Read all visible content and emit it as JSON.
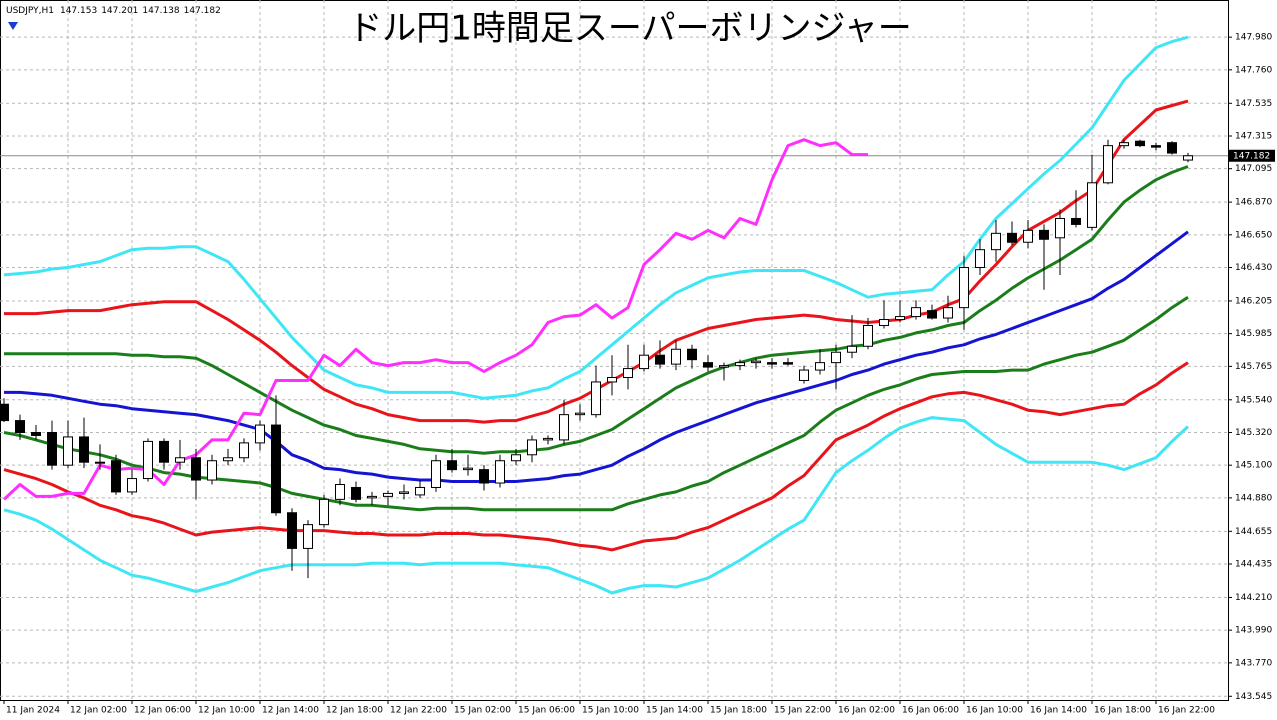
{
  "chart_data": {
    "type": "candlestick",
    "title": "ドル円1時間足スーパーボリンジャー",
    "symbol": "USDJPY,H1",
    "ylim": [
      143.52,
      148.23
    ],
    "yticks": [
      {
        "value": 147.98,
        "label": "147.980"
      },
      {
        "value": 147.76,
        "label": "147.760"
      },
      147.535,
      147.315,
      147.095,
      {
        "value": 146.87,
        "label": "146.870"
      },
      {
        "value": 146.65,
        "label": "146.650"
      },
      {
        "value": 146.43,
        "label": "146.430"
      },
      146.205,
      145.985,
      145.765,
      {
        "value": 145.54,
        "label": "145.540"
      },
      {
        "value": 145.32,
        "label": "145.320"
      },
      {
        "value": 145.1,
        "label": "145.100"
      },
      {
        "value": 144.88,
        "label": "144.880"
      },
      144.655,
      144.435,
      {
        "value": 144.21,
        "label": "144.210"
      },
      {
        "value": 143.99,
        "label": "143.990"
      },
      {
        "value": 143.77,
        "label": "143.770"
      },
      143.545
    ],
    "grid": true,
    "price_line": true,
    "categories": [
      "11 Jan 2024",
      null,
      null,
      null,
      "12 Jan 02:00",
      null,
      null,
      null,
      "12 Jan 06:00",
      null,
      null,
      null,
      "12 Jan 10:00",
      null,
      null,
      null,
      "12 Jan 14:00",
      null,
      null,
      null,
      "12 Jan 18:00",
      null,
      null,
      null,
      "12 Jan 22:00",
      null,
      null,
      null,
      "15 Jan 02:00",
      null,
      null,
      null,
      "15 Jan 06:00",
      null,
      null,
      null,
      "15 Jan 10:00",
      null,
      null,
      null,
      "15 Jan 14:00",
      null,
      null,
      null,
      "15 Jan 18:00",
      null,
      null,
      null,
      "15 Jan 22:00",
      null,
      null,
      null,
      "16 Jan 02:00",
      null,
      null,
      null,
      "16 Jan 06:00",
      null,
      null,
      null,
      "16 Jan 10:00",
      null,
      null,
      null,
      "16 Jan 14:00",
      null,
      null,
      null,
      "16 Jan 18:00",
      null,
      null,
      null,
      "16 Jan 22:00",
      null,
      null
    ],
    "open": [
      145.51,
      145.4,
      145.32,
      145.32,
      145.1,
      145.29,
      145.12,
      145.13,
      144.92,
      145.01,
      145.26,
      145.12,
      145.15,
      145.0,
      145.13,
      145.15,
      145.25,
      145.37,
      144.78,
      144.54,
      144.7,
      144.87,
      144.95,
      144.88,
      144.89,
      144.91,
      144.9,
      144.95,
      145.13,
      145.07,
      145.07,
      144.98,
      145.13,
      145.17,
      145.27,
      145.27,
      145.44,
      145.44,
      145.66,
      145.69,
      145.75,
      145.84,
      145.78,
      145.88,
      145.79,
      145.76,
      145.77,
      145.79,
      145.79,
      145.79,
      145.67,
      145.74,
      145.79,
      145.86,
      145.9,
      146.04,
      146.08,
      146.1,
      146.14,
      146.09,
      146.16,
      146.43,
      146.55,
      146.66,
      146.6,
      146.68,
      146.63,
      146.76,
      146.7,
      147.0,
      147.25,
      147.28,
      147.25,
      147.27,
      147.153
    ],
    "high": [
      145.55,
      145.44,
      145.37,
      145.4,
      145.4,
      145.42,
      145.24,
      145.17,
      145.07,
      145.28,
      145.28,
      145.27,
      145.21,
      145.17,
      145.21,
      145.28,
      145.4,
      145.57,
      144.81,
      144.73,
      144.9,
      145.01,
      144.99,
      144.92,
      144.93,
      144.97,
      145.0,
      145.17,
      145.21,
      145.17,
      145.1,
      145.17,
      145.21,
      145.3,
      145.3,
      145.54,
      145.51,
      145.77,
      145.84,
      145.91,
      145.91,
      145.94,
      145.94,
      145.91,
      145.84,
      145.79,
      145.81,
      145.82,
      145.82,
      145.82,
      145.77,
      145.88,
      145.91,
      146.11,
      146.09,
      146.21,
      146.21,
      146.21,
      146.18,
      146.24,
      146.51,
      146.62,
      146.75,
      146.74,
      146.75,
      146.72,
      146.82,
      146.95,
      147.19,
      147.29,
      147.29,
      147.29,
      147.27,
      147.28,
      147.201
    ],
    "low": [
      145.39,
      145.27,
      145.27,
      145.07,
      145.08,
      145.08,
      145.07,
      144.9,
      144.9,
      144.99,
      145.07,
      145.07,
      144.87,
      144.97,
      145.1,
      145.12,
      145.2,
      144.76,
      144.39,
      144.34,
      144.68,
      144.83,
      144.85,
      144.83,
      144.83,
      144.87,
      144.88,
      144.92,
      145.05,
      145.03,
      144.93,
      144.95,
      145.1,
      145.12,
      145.24,
      145.24,
      145.4,
      145.42,
      145.57,
      145.61,
      145.73,
      145.75,
      145.74,
      145.75,
      145.73,
      145.67,
      145.74,
      145.75,
      145.75,
      145.77,
      145.65,
      145.71,
      145.61,
      145.82,
      145.88,
      146.02,
      146.06,
      146.08,
      146.08,
      146.06,
      146.01,
      146.38,
      146.47,
      146.58,
      146.56,
      146.28,
      146.38,
      146.7,
      146.68,
      146.99,
      147.23,
      147.24,
      147.22,
      147.19,
      147.138
    ],
    "close": [
      145.4,
      145.32,
      145.3,
      145.1,
      145.29,
      145.12,
      145.12,
      144.92,
      145.01,
      145.26,
      145.12,
      145.15,
      145.0,
      145.13,
      145.15,
      145.25,
      145.37,
      144.78,
      144.54,
      144.7,
      144.87,
      144.97,
      144.87,
      144.89,
      144.91,
      144.92,
      144.95,
      145.13,
      145.07,
      145.08,
      144.98,
      145.13,
      145.17,
      145.27,
      145.28,
      145.44,
      145.45,
      145.66,
      145.69,
      145.75,
      145.84,
      145.78,
      145.88,
      145.81,
      145.76,
      145.77,
      145.79,
      145.8,
      145.78,
      145.78,
      145.74,
      145.79,
      145.86,
      145.9,
      146.04,
      146.08,
      146.1,
      146.16,
      146.09,
      146.16,
      146.43,
      146.55,
      146.66,
      146.6,
      146.68,
      146.62,
      146.76,
      146.72,
      147.0,
      147.25,
      147.27,
      147.25,
      147.24,
      147.2,
      147.182
    ],
    "candle_colors": {
      "up": "#ffffff",
      "down": "#000000",
      "outline": "#000000"
    },
    "lines": [
      {
        "color": "#3fe6f5",
        "values": [
          146.38,
          146.39,
          146.4,
          146.42,
          146.43,
          146.45,
          146.47,
          146.51,
          146.55,
          146.56,
          146.56,
          146.57,
          146.57,
          146.52,
          146.47,
          146.35,
          146.22,
          146.09,
          145.96,
          145.85,
          145.74,
          145.69,
          145.64,
          145.62,
          145.59,
          145.59,
          145.59,
          145.59,
          145.59,
          145.57,
          145.55,
          145.56,
          145.57,
          145.6,
          145.62,
          145.68,
          145.73,
          145.82,
          145.91,
          146.0,
          146.09,
          146.18,
          146.26,
          146.31,
          146.36,
          146.38,
          146.4,
          146.41,
          146.41,
          146.41,
          146.41,
          146.37,
          146.33,
          146.28,
          146.23,
          146.25,
          146.26,
          146.27,
          146.28,
          146.38,
          146.47,
          146.62,
          146.76,
          146.86,
          146.96,
          147.06,
          147.15,
          147.26,
          147.37,
          147.53,
          147.69,
          147.8,
          147.91,
          147.95,
          147.98
        ]
      },
      {
        "color": "#e8141a",
        "values": [
          146.12,
          146.12,
          146.12,
          146.13,
          146.14,
          146.14,
          146.14,
          146.16,
          146.18,
          146.19,
          146.2,
          146.2,
          146.2,
          146.14,
          146.08,
          146.01,
          145.94,
          145.86,
          145.77,
          145.69,
          145.61,
          145.56,
          145.51,
          145.48,
          145.44,
          145.42,
          145.4,
          145.4,
          145.4,
          145.4,
          145.39,
          145.4,
          145.4,
          145.43,
          145.46,
          145.51,
          145.55,
          145.61,
          145.67,
          145.73,
          145.79,
          145.87,
          145.94,
          145.98,
          146.02,
          146.04,
          146.06,
          146.08,
          146.09,
          146.1,
          146.11,
          146.1,
          146.08,
          146.07,
          146.06,
          146.07,
          146.08,
          146.11,
          146.13,
          146.18,
          146.22,
          146.34,
          146.45,
          146.57,
          146.68,
          146.74,
          146.8,
          146.88,
          146.95,
          147.12,
          147.29,
          147.39,
          147.49,
          147.52,
          147.55
        ]
      },
      {
        "color": "#1a7d1a",
        "values": [
          145.85,
          145.85,
          145.85,
          145.85,
          145.85,
          145.85,
          145.85,
          145.85,
          145.84,
          145.84,
          145.83,
          145.83,
          145.82,
          145.77,
          145.71,
          145.65,
          145.59,
          145.53,
          145.47,
          145.42,
          145.37,
          145.34,
          145.3,
          145.28,
          145.26,
          145.24,
          145.21,
          145.2,
          145.19,
          145.19,
          145.18,
          145.19,
          145.19,
          145.2,
          145.21,
          145.24,
          145.26,
          145.3,
          145.34,
          145.41,
          145.48,
          145.55,
          145.62,
          145.67,
          145.72,
          145.76,
          145.79,
          145.82,
          145.84,
          145.85,
          145.86,
          145.87,
          145.88,
          145.9,
          145.91,
          145.94,
          145.96,
          145.99,
          146.01,
          146.04,
          146.06,
          146.14,
          146.21,
          146.29,
          146.36,
          146.42,
          146.48,
          146.55,
          146.62,
          146.75,
          146.87,
          146.95,
          147.02,
          147.07,
          147.11
        ]
      },
      {
        "color": "#1414d2",
        "values": [
          145.59,
          145.59,
          145.58,
          145.57,
          145.55,
          145.53,
          145.51,
          145.5,
          145.48,
          145.47,
          145.46,
          145.45,
          145.44,
          145.42,
          145.4,
          145.37,
          145.34,
          145.26,
          145.17,
          145.13,
          145.08,
          145.07,
          145.05,
          145.04,
          145.02,
          145.01,
          145.0,
          145.0,
          144.99,
          144.99,
          144.99,
          144.99,
          144.99,
          145.0,
          145.01,
          145.03,
          145.04,
          145.07,
          145.1,
          145.16,
          145.21,
          145.27,
          145.32,
          145.36,
          145.4,
          145.44,
          145.48,
          145.52,
          145.55,
          145.58,
          145.61,
          145.64,
          145.67,
          145.71,
          145.74,
          145.78,
          145.81,
          145.84,
          145.86,
          145.89,
          145.91,
          145.95,
          145.98,
          146.02,
          146.06,
          146.1,
          146.14,
          146.18,
          146.22,
          146.29,
          146.35,
          146.43,
          146.51,
          146.59,
          146.67
        ]
      },
      {
        "color": "#1a7d1a",
        "values": [
          145.32,
          145.3,
          145.27,
          145.24,
          145.21,
          145.19,
          145.17,
          145.14,
          145.1,
          145.08,
          145.05,
          145.04,
          145.02,
          145.01,
          145.0,
          144.99,
          144.98,
          144.95,
          144.91,
          144.89,
          144.87,
          144.85,
          144.83,
          144.83,
          144.82,
          144.81,
          144.8,
          144.81,
          144.81,
          144.81,
          144.8,
          144.8,
          144.8,
          144.8,
          144.8,
          144.8,
          144.8,
          144.8,
          144.8,
          144.84,
          144.87,
          144.9,
          144.92,
          144.96,
          144.99,
          145.05,
          145.1,
          145.15,
          145.2,
          145.25,
          145.3,
          145.39,
          145.47,
          145.52,
          145.57,
          145.61,
          145.64,
          145.68,
          145.71,
          145.72,
          145.73,
          145.73,
          145.73,
          145.74,
          145.74,
          145.78,
          145.81,
          145.84,
          145.86,
          145.9,
          145.94,
          146.01,
          146.08,
          146.16,
          146.23
        ]
      },
      {
        "color": "#e8141a",
        "values": [
          145.07,
          145.04,
          145.01,
          144.97,
          144.92,
          144.88,
          144.83,
          144.8,
          144.76,
          144.74,
          144.71,
          144.67,
          144.63,
          144.65,
          144.66,
          144.67,
          144.68,
          144.67,
          144.66,
          144.66,
          144.66,
          144.65,
          144.64,
          144.64,
          144.63,
          144.63,
          144.63,
          144.64,
          144.64,
          144.64,
          144.63,
          144.63,
          144.62,
          144.61,
          144.6,
          144.58,
          144.56,
          144.55,
          144.53,
          144.56,
          144.59,
          144.6,
          144.61,
          144.65,
          144.68,
          144.73,
          144.78,
          144.83,
          144.88,
          144.96,
          145.03,
          145.15,
          145.27,
          145.32,
          145.37,
          145.43,
          145.48,
          145.52,
          145.56,
          145.58,
          145.59,
          145.57,
          145.54,
          145.51,
          145.47,
          145.46,
          145.44,
          145.46,
          145.48,
          145.5,
          145.51,
          145.58,
          145.64,
          145.72,
          145.79
        ]
      },
      {
        "color": "#3fe6f5",
        "values": [
          144.8,
          144.77,
          144.73,
          144.67,
          144.6,
          144.53,
          144.46,
          144.41,
          144.36,
          144.34,
          144.31,
          144.28,
          144.25,
          144.28,
          144.31,
          144.35,
          144.39,
          144.41,
          144.43,
          144.43,
          144.43,
          144.43,
          144.43,
          144.44,
          144.44,
          144.44,
          144.43,
          144.44,
          144.44,
          144.44,
          144.44,
          144.44,
          144.43,
          144.42,
          144.41,
          144.37,
          144.33,
          144.29,
          144.24,
          144.27,
          144.29,
          144.29,
          144.28,
          144.31,
          144.34,
          144.4,
          144.46,
          144.53,
          144.6,
          144.67,
          144.73,
          144.89,
          145.05,
          145.13,
          145.2,
          145.28,
          145.35,
          145.39,
          145.42,
          145.41,
          145.4,
          145.32,
          145.24,
          145.18,
          145.12,
          145.12,
          145.12,
          145.12,
          145.12,
          145.1,
          145.07,
          145.11,
          145.15,
          145.26,
          145.36
        ]
      },
      {
        "color": "#ff2eff",
        "values": [
          144.87,
          144.97,
          144.89,
          144.89,
          144.91,
          144.91,
          145.1,
          145.07,
          145.08,
          145.07,
          144.97,
          145.13,
          145.17,
          145.27,
          145.27,
          145.45,
          145.44,
          145.67,
          145.67,
          145.67,
          145.84,
          145.77,
          145.88,
          145.79,
          145.77,
          145.79,
          145.79,
          145.81,
          145.79,
          145.79,
          145.73,
          145.79,
          145.84,
          145.91,
          146.06,
          146.1,
          146.11,
          146.18,
          146.09,
          146.16,
          146.45,
          146.55,
          146.66,
          146.62,
          146.68,
          146.63,
          146.76,
          146.72,
          147.02,
          147.25,
          147.29,
          147.25,
          147.27,
          147.19,
          147.19,
          null,
          null,
          null,
          null,
          null,
          null,
          null,
          null,
          null,
          null,
          null,
          null,
          null,
          null,
          null,
          null,
          null,
          null,
          null,
          null
        ]
      }
    ]
  }
}
